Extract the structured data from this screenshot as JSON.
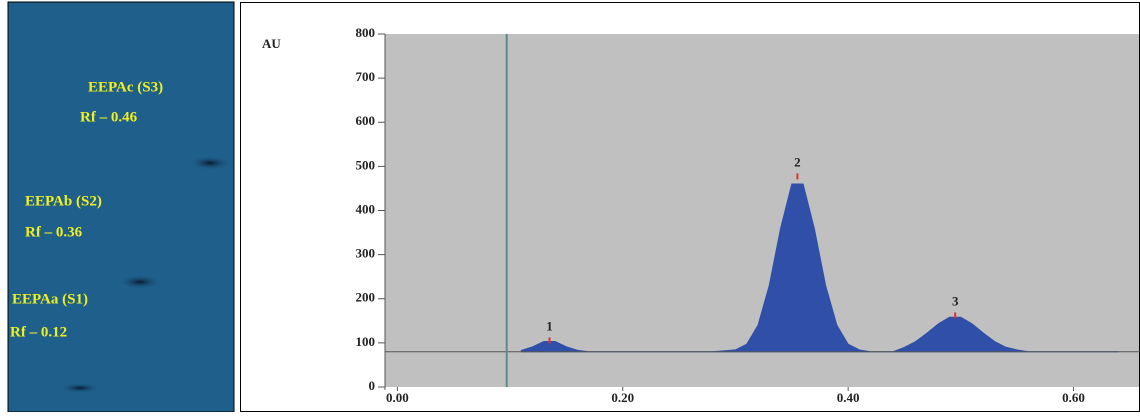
{
  "plate": {
    "labels": [
      "EEPAc (S3)",
      "Rf – 0.46",
      "EEPAb (S2)",
      "Rf – 0.36",
      "EEPAa (S1)",
      "Rf – 0.12"
    ]
  },
  "chart_data": {
    "type": "area",
    "y_label": "AU",
    "color": "#2f4fa8",
    "x": [
      0.11,
      0.12,
      0.13,
      0.14,
      0.15,
      0.16,
      0.17,
      0.18,
      0.2,
      0.22,
      0.24,
      0.26,
      0.28,
      0.3,
      0.31,
      0.32,
      0.33,
      0.34,
      0.35,
      0.36,
      0.37,
      0.38,
      0.39,
      0.4,
      0.41,
      0.42,
      0.44,
      0.45,
      0.46,
      0.47,
      0.48,
      0.49,
      0.5,
      0.51,
      0.52,
      0.53,
      0.54,
      0.55,
      0.56,
      0.6,
      0.64
    ],
    "values": [
      83,
      91,
      103,
      103,
      91,
      83,
      80,
      80,
      80,
      80,
      80,
      80,
      80,
      84,
      97,
      140,
      230,
      359,
      460,
      460,
      359,
      230,
      140,
      97,
      84,
      80,
      80,
      90,
      103,
      122,
      143,
      158,
      158,
      143,
      122,
      103,
      90,
      84,
      80,
      80,
      80
    ],
    "baseline": 80,
    "start_line": 0.097,
    "peaks": [
      {
        "label": "1",
        "x": 0.135,
        "height": 103
      },
      {
        "label": "2",
        "x": 0.355,
        "height": 475
      },
      {
        "label": "3",
        "x": 0.495,
        "height": 160
      }
    ],
    "xlim": [
      -0.011,
      0.659
    ],
    "ylim": [
      0,
      800
    ],
    "xticks": [
      {
        "value": 0,
        "label": "0.00"
      },
      {
        "value": 0.2,
        "label": "0.20"
      },
      {
        "value": 0.4,
        "label": "0.40"
      },
      {
        "value": 0.6,
        "label": "0.60"
      }
    ],
    "yticks": [
      0,
      100,
      200,
      300,
      400,
      500,
      600,
      700,
      800
    ]
  }
}
